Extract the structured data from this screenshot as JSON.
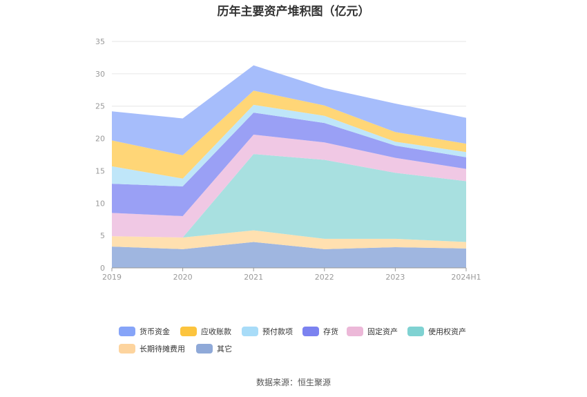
{
  "chart_data": {
    "type": "area",
    "stacked": true,
    "title": "历年主要资产堆积图（亿元）",
    "categories": [
      "2019",
      "2020",
      "2021",
      "2022",
      "2023",
      "2024H1"
    ],
    "ylim": [
      0,
      35
    ],
    "yticks": [
      0,
      5,
      10,
      15,
      20,
      25,
      30,
      35
    ],
    "grid": true,
    "legend_position": "bottom",
    "series": [
      {
        "name": "其它",
        "color": "#9fb6e0",
        "values": [
          3.3,
          2.9,
          4.0,
          2.9,
          3.2,
          3.0
        ]
      },
      {
        "name": "长期待摊费用",
        "color": "#ffe0b0",
        "values": [
          1.6,
          1.8,
          1.8,
          1.6,
          1.3,
          1.0
        ]
      },
      {
        "name": "使用权资产",
        "color": "#a8e0e0",
        "values": [
          0.0,
          0.0,
          11.8,
          12.2,
          10.2,
          9.4
        ]
      },
      {
        "name": "固定资产",
        "color": "#f0c8e4",
        "values": [
          3.6,
          3.3,
          3.0,
          2.7,
          2.3,
          1.9
        ]
      },
      {
        "name": "存货",
        "color": "#9aa0f5",
        "values": [
          4.5,
          4.6,
          3.4,
          3.0,
          1.9,
          1.8
        ]
      },
      {
        "name": "预付款项",
        "color": "#bfe6f9",
        "values": [
          2.7,
          1.2,
          1.2,
          1.1,
          0.6,
          0.8
        ]
      },
      {
        "name": "应收账款",
        "color": "#ffd677",
        "values": [
          4.0,
          3.6,
          2.2,
          1.6,
          1.5,
          1.3
        ]
      },
      {
        "name": "货币资金",
        "color": "#a6bdfb",
        "values": [
          4.5,
          5.7,
          3.9,
          2.7,
          4.4,
          4.0
        ]
      }
    ],
    "legend_order": [
      "货币资金",
      "应收账款",
      "预付款项",
      "存货",
      "固定资产",
      "使用权资产",
      "长期待摊费用",
      "其它"
    ],
    "legend_colors": {
      "货币资金": "#86a4f8",
      "应收账款": "#fcc43e",
      "预付款项": "#a8dcf8",
      "存货": "#7b82f0",
      "固定资产": "#ecb8d8",
      "使用权资产": "#7fd2d2",
      "长期待摊费用": "#fdd49e",
      "其它": "#8fa9d8"
    }
  },
  "source": "数据来源：恒生聚源"
}
